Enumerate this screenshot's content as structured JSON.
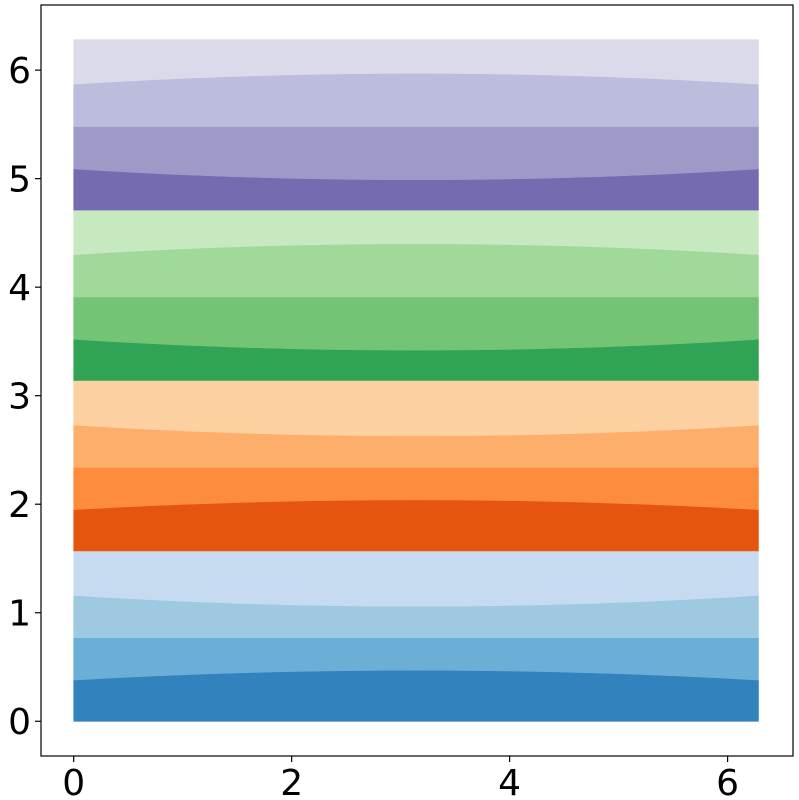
{
  "chart_data": {
    "type": "area",
    "title": "",
    "xlabel": "",
    "ylabel": "",
    "xlim": [
      -0.3,
      6.6
    ],
    "ylim": [
      -0.32,
      6.6
    ],
    "x_domain": [
      0,
      6.2832
    ],
    "grid": false,
    "x_ticks": [
      {
        "value": 0,
        "label": "0"
      },
      {
        "value": 2,
        "label": "2"
      },
      {
        "value": 4,
        "label": "4"
      },
      {
        "value": 6,
        "label": "6"
      }
    ],
    "y_ticks": [
      {
        "value": 0,
        "label": "0"
      },
      {
        "value": 1,
        "label": "1"
      },
      {
        "value": 2,
        "label": "2"
      },
      {
        "value": 3,
        "label": "3"
      },
      {
        "value": 4,
        "label": "4"
      },
      {
        "value": 5,
        "label": "5"
      },
      {
        "value": 6,
        "label": "6"
      }
    ],
    "bands": [
      {
        "color": "#3182bd",
        "lower": {
          "edge": 0.0,
          "mid": 0.0
        },
        "upper": {
          "edge": 0.38,
          "mid": 0.47
        }
      },
      {
        "color": "#6baed6",
        "lower": {
          "edge": 0.38,
          "mid": 0.47
        },
        "upper": {
          "edge": 0.77,
          "mid": 0.77
        }
      },
      {
        "color": "#9ecae1",
        "lower": {
          "edge": 0.77,
          "mid": 0.77
        },
        "upper": {
          "edge": 1.16,
          "mid": 1.06
        }
      },
      {
        "color": "#c6dbef",
        "lower": {
          "edge": 1.16,
          "mid": 1.06
        },
        "upper": {
          "edge": 1.57,
          "mid": 1.57
        }
      },
      {
        "color": "#e6550d",
        "lower": {
          "edge": 1.57,
          "mid": 1.57
        },
        "upper": {
          "edge": 1.95,
          "mid": 2.04
        }
      },
      {
        "color": "#fd8d3c",
        "lower": {
          "edge": 1.95,
          "mid": 2.04
        },
        "upper": {
          "edge": 2.34,
          "mid": 2.34
        }
      },
      {
        "color": "#fdae6b",
        "lower": {
          "edge": 2.34,
          "mid": 2.34
        },
        "upper": {
          "edge": 2.73,
          "mid": 2.63
        }
      },
      {
        "color": "#fdd0a2",
        "lower": {
          "edge": 2.73,
          "mid": 2.63
        },
        "upper": {
          "edge": 3.14,
          "mid": 3.14
        }
      },
      {
        "color": "#31a354",
        "lower": {
          "edge": 3.14,
          "mid": 3.14
        },
        "upper": {
          "edge": 3.52,
          "mid": 3.42
        }
      },
      {
        "color": "#74c476",
        "lower": {
          "edge": 3.52,
          "mid": 3.42
        },
        "upper": {
          "edge": 3.91,
          "mid": 3.91
        }
      },
      {
        "color": "#a1d99b",
        "lower": {
          "edge": 3.91,
          "mid": 3.91
        },
        "upper": {
          "edge": 4.3,
          "mid": 4.4
        }
      },
      {
        "color": "#c7e9c0",
        "lower": {
          "edge": 4.3,
          "mid": 4.4
        },
        "upper": {
          "edge": 4.71,
          "mid": 4.71
        }
      },
      {
        "color": "#756bb1",
        "lower": {
          "edge": 4.71,
          "mid": 4.71
        },
        "upper": {
          "edge": 5.09,
          "mid": 4.99
        }
      },
      {
        "color": "#9e9ac8",
        "lower": {
          "edge": 5.09,
          "mid": 4.99
        },
        "upper": {
          "edge": 5.48,
          "mid": 5.48
        }
      },
      {
        "color": "#bcbddc",
        "lower": {
          "edge": 5.48,
          "mid": 5.48
        },
        "upper": {
          "edge": 5.87,
          "mid": 5.97
        }
      },
      {
        "color": "#dadaeb",
        "lower": {
          "edge": 5.87,
          "mid": 5.97
        },
        "upper": {
          "edge": 6.28,
          "mid": 6.28
        }
      }
    ]
  }
}
